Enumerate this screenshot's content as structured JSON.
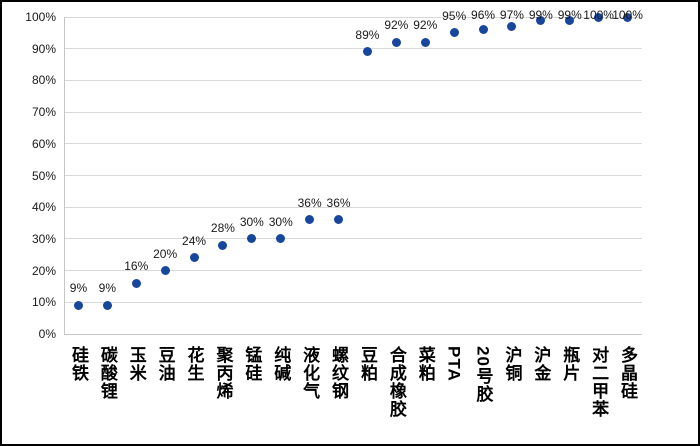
{
  "chart_data": {
    "type": "scatter",
    "title": "",
    "xlabel": "",
    "ylabel": "",
    "categories": [
      "硅铁",
      "碳酸锂",
      "玉米",
      "豆油",
      "花生",
      "聚丙烯",
      "锰硅",
      "纯碱",
      "液化气",
      "螺纹钢",
      "豆粕",
      "合成橡胶",
      "菜粕",
      "PTA",
      "20号胶",
      "沪铜",
      "沪金",
      "瓶片",
      "对二甲苯",
      "多晶硅"
    ],
    "values": [
      9,
      9,
      16,
      20,
      24,
      28,
      30,
      30,
      36,
      36,
      89,
      92,
      92,
      95,
      96,
      97,
      99,
      99,
      100,
      100
    ],
    "value_labels": [
      "9%",
      "9%",
      "16%",
      "20%",
      "24%",
      "28%",
      "30%",
      "30%",
      "36%",
      "36%",
      "89%",
      "92%",
      "92%",
      "95%",
      "96%",
      "97%",
      "99%",
      "99%",
      "100%",
      "100%"
    ],
    "y_ticks": [
      {
        "value": 0,
        "label": "0%"
      },
      {
        "value": 10,
        "label": "10%"
      },
      {
        "value": 20,
        "label": "20%"
      },
      {
        "value": 30,
        "label": "30%"
      },
      {
        "value": 40,
        "label": "40%"
      },
      {
        "value": 50,
        "label": "50%"
      },
      {
        "value": 60,
        "label": "60%"
      },
      {
        "value": 70,
        "label": "70%"
      },
      {
        "value": 80,
        "label": "80%"
      },
      {
        "value": 90,
        "label": "90%"
      },
      {
        "value": 100,
        "label": "100%"
      }
    ],
    "ylim": [
      0,
      100
    ],
    "grid": true,
    "legend": "none",
    "colors": {
      "marker": "#17479d",
      "gridline": "#d9d9d9",
      "axis_line": "#c6c6c6",
      "text": "#1a1a1a",
      "frame_border": "#000000",
      "background": "#ffffff"
    }
  }
}
